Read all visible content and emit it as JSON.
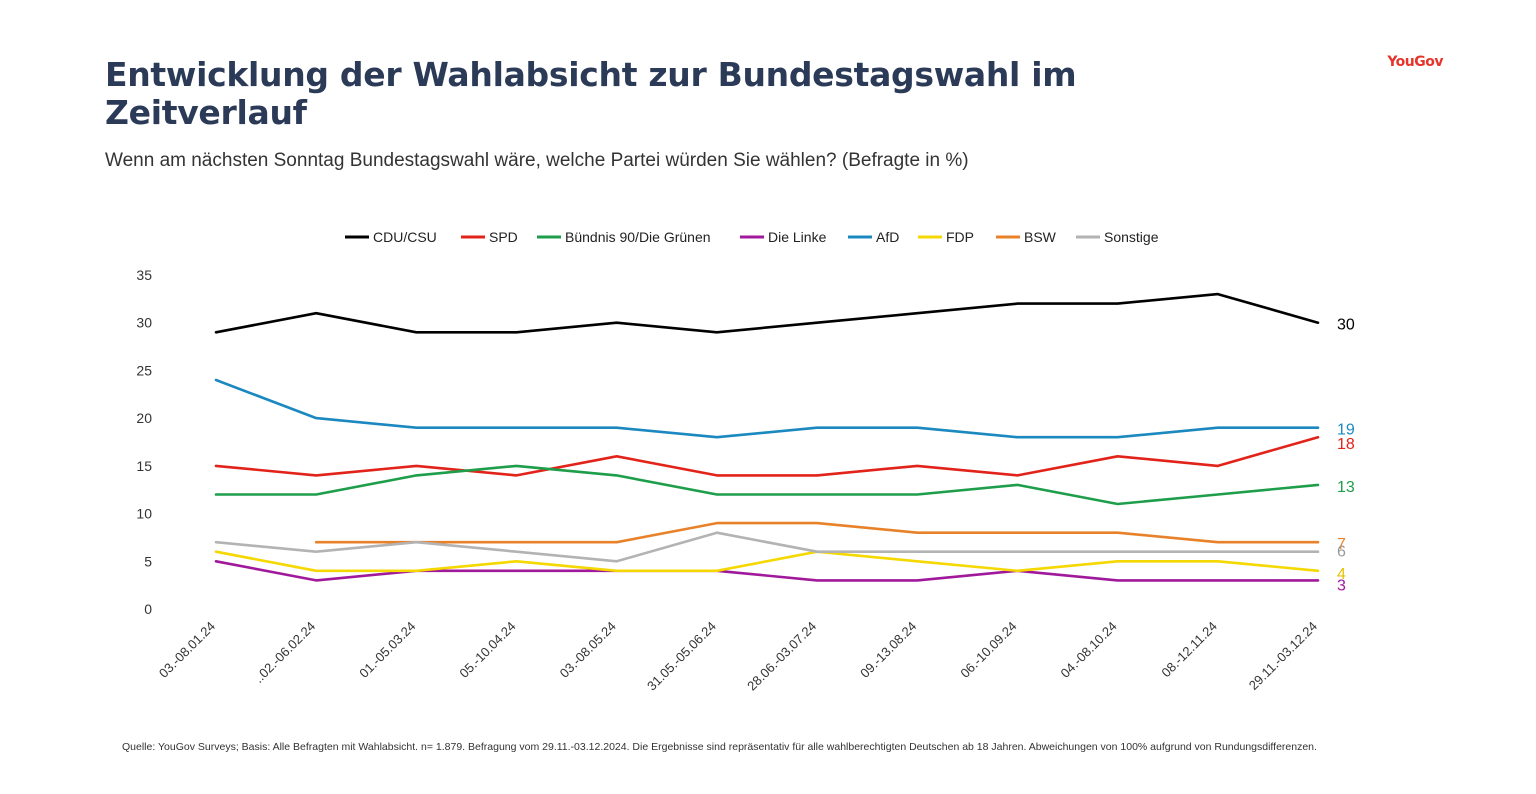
{
  "header": {
    "title": "Entwicklung der Wahlabsicht zur Bundestagswahl im Zeitverlauf",
    "subtitle": "Wenn am nächsten Sonntag Bundestagswahl wäre, welche Partei würden Sie wählen? (Befragte in %)",
    "brand": "YouGov"
  },
  "footnote": "Quelle: YouGov Surveys; Basis: Alle Befragten mit Wahlabsicht. n= 1.879. Befragung vom 29.11.-03.12.2024. Die Ergebnisse sind repräsentativ für alle wahlberechtigten Deutschen ab 18 Jahren. Abweichungen von 100% aufgrund von Rundungsdifferenzen.",
  "chart_data": {
    "type": "line",
    "title": "Entwicklung der Wahlabsicht zur Bundestagswahl im Zeitverlauf",
    "xlabel": "",
    "ylabel": "",
    "ylim": [
      0,
      35
    ],
    "yticks": [
      0,
      5,
      10,
      15,
      20,
      25,
      30,
      35
    ],
    "grid": false,
    "legend": "top",
    "categories": [
      "03.-08.01.24",
      "..02.-06.02.24",
      "01.-05.03.24",
      "05.-10.04.24",
      "03.-08.05.24",
      "31.05.-05.06.24",
      "28.06.-03.07.24",
      "09.-13.08.24",
      "06.-10.09.24",
      "04.-08.10.24",
      "08.-12.11.24",
      "29.11.-03.12.24"
    ],
    "series": [
      {
        "name": "CDU/CSU",
        "color": "#000000",
        "end_label": "30",
        "label_color": "#000000",
        "values": [
          29,
          31,
          29,
          29,
          30,
          29,
          30,
          31,
          32,
          32,
          33,
          30
        ]
      },
      {
        "name": "SPD",
        "color": "#e2231a",
        "end_label": "18",
        "label_color": "#e2231a",
        "values": [
          15,
          14,
          15,
          14,
          16,
          14,
          14,
          15,
          14,
          16,
          15,
          18
        ]
      },
      {
        "name": "Bündnis 90/Die Grünen",
        "color": "#1e9e4a",
        "end_label": "13",
        "label_color": "#1e9e4a",
        "values": [
          12,
          12,
          14,
          15,
          14,
          12,
          12,
          12,
          13,
          11,
          12,
          13
        ]
      },
      {
        "name": "Die Linke",
        "color": "#a0199b",
        "end_label": "3",
        "label_color": "#a0199b",
        "values": [
          5,
          3,
          4,
          4,
          4,
          4,
          3,
          3,
          4,
          3,
          3,
          3
        ]
      },
      {
        "name": "AfD",
        "color": "#1b88c0",
        "end_label": "19",
        "label_color": "#1b88c0",
        "values": [
          24,
          20,
          19,
          19,
          19,
          18,
          19,
          19,
          18,
          18,
          19,
          19
        ]
      },
      {
        "name": "FDP",
        "color": "#f5d800",
        "end_label": "4",
        "label_color": "#e6c200",
        "values": [
          6,
          4,
          4,
          5,
          4,
          4,
          6,
          5,
          4,
          5,
          5,
          4
        ]
      },
      {
        "name": "BSW",
        "color": "#e8822a",
        "end_label": "7",
        "label_color": "#e8822a",
        "values": [
          null,
          7,
          7,
          7,
          7,
          9,
          9,
          8,
          8,
          8,
          7,
          7
        ]
      },
      {
        "name": "Sonstige",
        "color": "#b3b3b3",
        "end_label": "6",
        "label_color": "#999999",
        "values": [
          7,
          6,
          7,
          6,
          5,
          8,
          6,
          6,
          6,
          6,
          6,
          6
        ]
      }
    ]
  }
}
